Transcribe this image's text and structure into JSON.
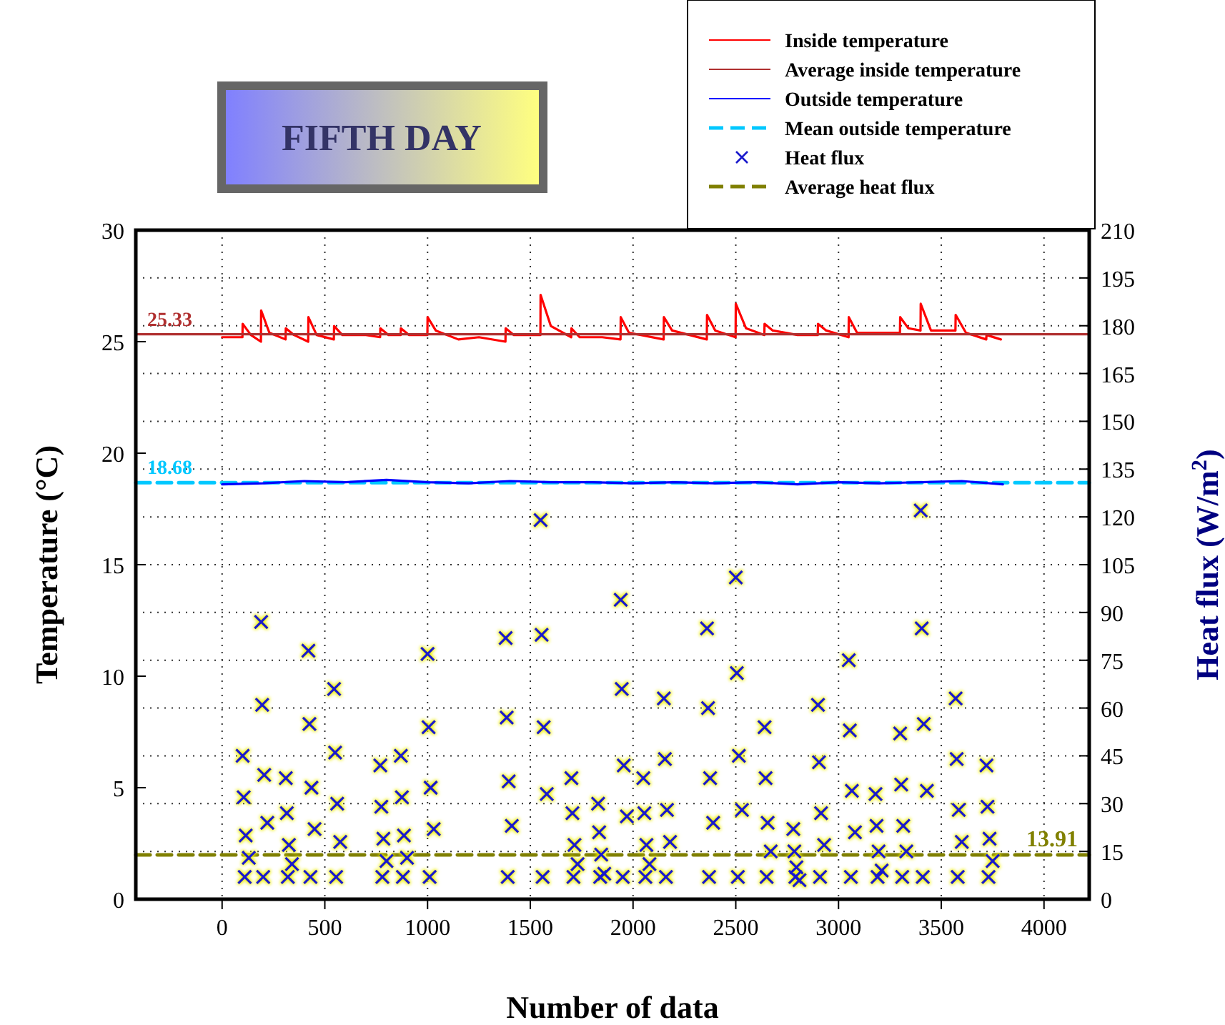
{
  "chart_data": {
    "type": "line",
    "title": "FIFTH DAY",
    "xlabel": "Number of data",
    "ylabel": "Temperature (°C)",
    "y2label": "Heat flux (W/m$^{2}$)",
    "xlim": [
      -420,
      4220
    ],
    "xticks": [
      0,
      500,
      1000,
      1500,
      2000,
      2500,
      3000,
      3500,
      4000
    ],
    "ylim": [
      0,
      30
    ],
    "yticks": [
      0,
      5,
      10,
      15,
      20,
      25,
      30
    ],
    "y2lim": [
      0,
      210
    ],
    "y2ticks": [
      0,
      15,
      30,
      45,
      60,
      75,
      90,
      105,
      120,
      135,
      150,
      165,
      180,
      195,
      210
    ],
    "grid": true,
    "legend": "top right",
    "series": [
      {
        "name": "Inside temperature",
        "color": "#ff0000",
        "x": [
          0,
          99,
          100,
          140,
          189,
          190,
          230,
          309,
          310,
          350,
          419,
          420,
          460,
          544,
          545,
          585,
          700,
          769,
          770,
          810,
          869,
          870,
          910,
          999,
          1000,
          1040,
          1150,
          1250,
          1379,
          1380,
          1420,
          1549,
          1550,
          1600,
          1699,
          1700,
          1740,
          1850,
          1939,
          1940,
          1980,
          2149,
          2150,
          2190,
          2359,
          2360,
          2400,
          2499,
          2500,
          2550,
          2639,
          2640,
          2680,
          2800,
          2899,
          2900,
          2940,
          3049,
          3050,
          3090,
          3299,
          3300,
          3340,
          3399,
          3400,
          3450,
          3569,
          3570,
          3620,
          3719,
          3720,
          3790
        ],
        "values": [
          25.2,
          25.2,
          25.8,
          25.3,
          25.0,
          26.4,
          25.4,
          25.1,
          25.6,
          25.3,
          25.0,
          26.1,
          25.3,
          25.1,
          25.7,
          25.3,
          25.3,
          25.2,
          25.6,
          25.3,
          25.3,
          25.6,
          25.3,
          25.3,
          26.1,
          25.5,
          25.1,
          25.2,
          25.0,
          25.6,
          25.3,
          25.3,
          27.1,
          25.7,
          25.2,
          25.6,
          25.2,
          25.2,
          25.1,
          26.1,
          25.4,
          25.1,
          26.1,
          25.5,
          25.1,
          26.2,
          25.5,
          25.2,
          26.7,
          25.6,
          25.3,
          25.8,
          25.5,
          25.3,
          25.3,
          25.8,
          25.5,
          25.2,
          26.1,
          25.4,
          25.4,
          26.1,
          25.6,
          25.5,
          26.7,
          25.5,
          25.5,
          26.2,
          25.4,
          25.1,
          25.3,
          25.1
        ]
      },
      {
        "name": "Average inside temperature",
        "color": "#b03030",
        "x": [
          -420,
          4220
        ],
        "values": [
          25.33,
          25.33
        ],
        "value_labels": [
          "25.33",
          null
        ]
      },
      {
        "name": "Outside temperature",
        "color": "#0000ff",
        "x": [
          0,
          200,
          400,
          600,
          800,
          1000,
          1200,
          1400,
          1600,
          1800,
          2000,
          2200,
          2400,
          2600,
          2800,
          3000,
          3200,
          3400,
          3600,
          3800
        ],
        "values": [
          18.6,
          18.65,
          18.75,
          18.7,
          18.8,
          18.7,
          18.65,
          18.75,
          18.7,
          18.7,
          18.65,
          18.7,
          18.65,
          18.7,
          18.6,
          18.7,
          18.65,
          18.7,
          18.75,
          18.6
        ]
      },
      {
        "name": "Mean outside temperature",
        "color": "#00c8ff",
        "line_style": "dashed",
        "x": [
          -420,
          4220
        ],
        "values": [
          18.68,
          18.68
        ],
        "value_labels": [
          "18.68",
          null
        ]
      },
      {
        "name": "Heat flux",
        "type": "scatter",
        "marker": "cross",
        "axis": "y2",
        "color": "#1a1acc",
        "x": [
          100,
          105,
          115,
          130,
          110,
          190,
          195,
          205,
          220,
          200,
          310,
          315,
          325,
          340,
          320,
          420,
          425,
          435,
          450,
          430,
          545,
          550,
          560,
          575,
          555,
          770,
          775,
          785,
          800,
          780,
          870,
          875,
          885,
          900,
          880,
          1000,
          1005,
          1015,
          1030,
          1010,
          1380,
          1385,
          1395,
          1410,
          1390,
          1550,
          1555,
          1565,
          1580,
          1560,
          1700,
          1705,
          1715,
          1730,
          1710,
          1830,
          1835,
          1845,
          1860,
          1840,
          1940,
          1945,
          1955,
          1970,
          1950,
          2050,
          2055,
          2065,
          2080,
          2060,
          2150,
          2155,
          2165,
          2180,
          2160,
          2360,
          2365,
          2375,
          2390,
          2370,
          2500,
          2505,
          2515,
          2530,
          2510,
          2640,
          2645,
          2655,
          2670,
          2650,
          2780,
          2785,
          2795,
          2810,
          2790,
          2900,
          2905,
          2915,
          2930,
          2910,
          3050,
          3055,
          3065,
          3080,
          3060,
          3180,
          3185,
          3195,
          3210,
          3190,
          3300,
          3305,
          3315,
          3330,
          3310,
          3400,
          3405,
          3415,
          3430,
          3410,
          3570,
          3575,
          3585,
          3600,
          3580,
          3720,
          3725,
          3735,
          3750,
          3730
        ],
        "values": [
          45,
          32,
          20,
          13,
          7,
          87,
          61,
          39,
          24,
          7,
          38,
          27,
          17,
          11,
          7,
          78,
          55,
          35,
          22,
          7,
          66,
          46,
          30,
          18,
          7,
          42,
          29,
          19,
          12,
          7,
          45,
          32,
          20,
          13,
          7,
          77,
          54,
          35,
          22,
          7,
          82,
          57,
          37,
          23,
          7,
          119,
          83,
          54,
          33,
          7,
          38,
          27,
          17,
          11,
          7,
          30,
          21,
          14,
          8,
          7,
          94,
          66,
          42,
          26,
          7,
          38,
          27,
          17,
          11,
          7,
          63,
          44,
          28,
          18,
          7,
          85,
          60,
          38,
          24,
          7,
          101,
          71,
          45,
          28,
          7,
          54,
          38,
          24,
          15,
          7,
          22,
          15,
          10,
          6,
          7,
          61,
          43,
          27,
          17,
          7,
          75,
          53,
          34,
          21,
          7,
          33,
          23,
          15,
          9,
          7,
          52,
          36,
          23,
          15,
          7,
          122,
          85,
          55,
          34,
          7,
          63,
          44,
          28,
          18,
          7,
          42,
          29,
          19,
          12,
          7
        ]
      },
      {
        "name": "Average heat flux",
        "color": "#808000",
        "line_style": "dashed",
        "axis": "y2",
        "x": [
          -420,
          4220
        ],
        "values": [
          13.91,
          13.91
        ],
        "value_labels": [
          null,
          "13.91"
        ]
      }
    ]
  }
}
